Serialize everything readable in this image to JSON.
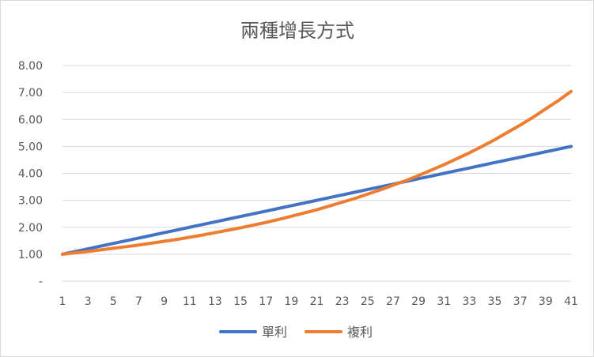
{
  "chart_data": {
    "type": "line",
    "title": "兩種增長方式",
    "xlabel": "",
    "ylabel": "",
    "x": [
      1,
      2,
      3,
      4,
      5,
      6,
      7,
      8,
      9,
      10,
      11,
      12,
      13,
      14,
      15,
      16,
      17,
      18,
      19,
      20,
      21,
      22,
      23,
      24,
      25,
      26,
      27,
      28,
      29,
      30,
      31,
      32,
      33,
      34,
      35,
      36,
      37,
      38,
      39,
      40,
      41
    ],
    "x_tick_labels": [
      "1",
      "3",
      "5",
      "7",
      "9",
      "11",
      "13",
      "15",
      "17",
      "19",
      "21",
      "23",
      "25",
      "27",
      "29",
      "31",
      "33",
      "35",
      "37",
      "39",
      "41"
    ],
    "y_tick_labels": [
      "-",
      "1.00",
      "2.00",
      "3.00",
      "4.00",
      "5.00",
      "6.00",
      "7.00",
      "8.00"
    ],
    "ylim": [
      0,
      8
    ],
    "grid": true,
    "legend_position": "bottom",
    "series": [
      {
        "name": "單利",
        "color": "#4472c4",
        "values": [
          1.0,
          1.1,
          1.2,
          1.3,
          1.4,
          1.5,
          1.6,
          1.7,
          1.8,
          1.9,
          2.0,
          2.1,
          2.2,
          2.3,
          2.4,
          2.5,
          2.6,
          2.7,
          2.8,
          2.9,
          3.0,
          3.1,
          3.2,
          3.3,
          3.4,
          3.5,
          3.6,
          3.7,
          3.8,
          3.9,
          4.0,
          4.1,
          4.2,
          4.3,
          4.4,
          4.5,
          4.6,
          4.7,
          4.8,
          4.9,
          5.0
        ]
      },
      {
        "name": "複利",
        "color": "#ed7d31",
        "values": [
          1.0,
          1.05,
          1.1,
          1.16,
          1.22,
          1.28,
          1.34,
          1.41,
          1.48,
          1.55,
          1.63,
          1.71,
          1.8,
          1.89,
          1.98,
          2.08,
          2.18,
          2.29,
          2.41,
          2.53,
          2.65,
          2.79,
          2.93,
          3.07,
          3.23,
          3.39,
          3.56,
          3.73,
          3.92,
          4.12,
          4.32,
          4.54,
          4.76,
          5.0,
          5.25,
          5.52,
          5.79,
          6.08,
          6.39,
          6.7,
          7.04
        ]
      }
    ]
  }
}
